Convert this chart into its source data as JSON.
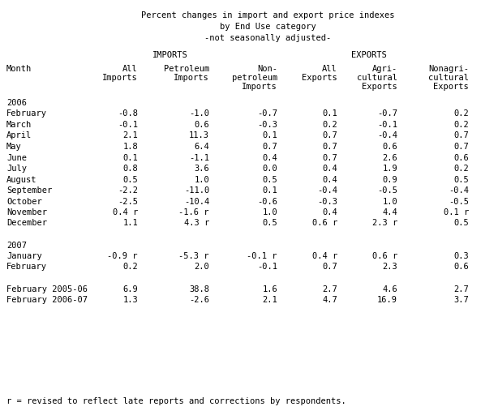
{
  "title_line1": "Percent changes in import and export price indexes",
  "title_line2": "by End Use category",
  "title_line3": "-not seasonally adjusted-",
  "imports_label": "IMPORTS",
  "exports_label": "EXPORTS",
  "rows": [
    [
      "2006",
      "",
      "",
      "",
      "",
      "",
      ""
    ],
    [
      "February",
      "-0.8",
      "-1.0",
      "-0.7",
      "0.1",
      "-0.7",
      "0.2"
    ],
    [
      "March",
      "-0.1",
      "0.6",
      "-0.3",
      "0.2",
      "-0.1",
      "0.2"
    ],
    [
      "April",
      "2.1",
      "11.3",
      "0.1",
      "0.7",
      "-0.4",
      "0.7"
    ],
    [
      "May",
      "1.8",
      "6.4",
      "0.7",
      "0.7",
      "0.6",
      "0.7"
    ],
    [
      "June",
      "0.1",
      "-1.1",
      "0.4",
      "0.7",
      "2.6",
      "0.6"
    ],
    [
      "July",
      "0.8",
      "3.6",
      "0.0",
      "0.4",
      "1.9",
      "0.2"
    ],
    [
      "August",
      "0.5",
      "1.0",
      "0.5",
      "0.4",
      "0.9",
      "0.5"
    ],
    [
      "September",
      "-2.2",
      "-11.0",
      "0.1",
      "-0.4",
      "-0.5",
      "-0.4"
    ],
    [
      "October",
      "-2.5",
      "-10.4",
      "-0.6",
      "-0.3",
      "1.0",
      "-0.5"
    ],
    [
      "November",
      "0.4 r",
      "-1.6 r",
      "1.0",
      "0.4",
      "4.4",
      "0.1 r"
    ],
    [
      "December",
      "1.1",
      "4.3 r",
      "0.5",
      "0.6 r",
      "2.3 r",
      "0.5"
    ],
    [
      "",
      "",
      "",
      "",
      "",
      "",
      ""
    ],
    [
      "2007",
      "",
      "",
      "",
      "",
      "",
      ""
    ],
    [
      "January",
      "-0.9 r",
      "-5.3 r",
      "-0.1 r",
      "0.4 r",
      "0.6 r",
      "0.3"
    ],
    [
      "February",
      "0.2",
      "2.0",
      "-0.1",
      "0.7",
      "2.3",
      "0.6"
    ],
    [
      "",
      "",
      "",
      "",
      "",
      "",
      ""
    ],
    [
      "February 2005-06",
      "6.9",
      "38.8",
      "1.6",
      "2.7",
      "4.6",
      "2.7"
    ],
    [
      "February 2006-07",
      "1.3",
      "-2.6",
      "2.1",
      "4.7",
      "16.9",
      "3.7"
    ]
  ],
  "footnote": "r = revised to reflect late reports and corrections by respondents.",
  "bg_color": "#ffffff",
  "text_color": "#000000",
  "font_family": "monospace",
  "font_size": 7.5
}
